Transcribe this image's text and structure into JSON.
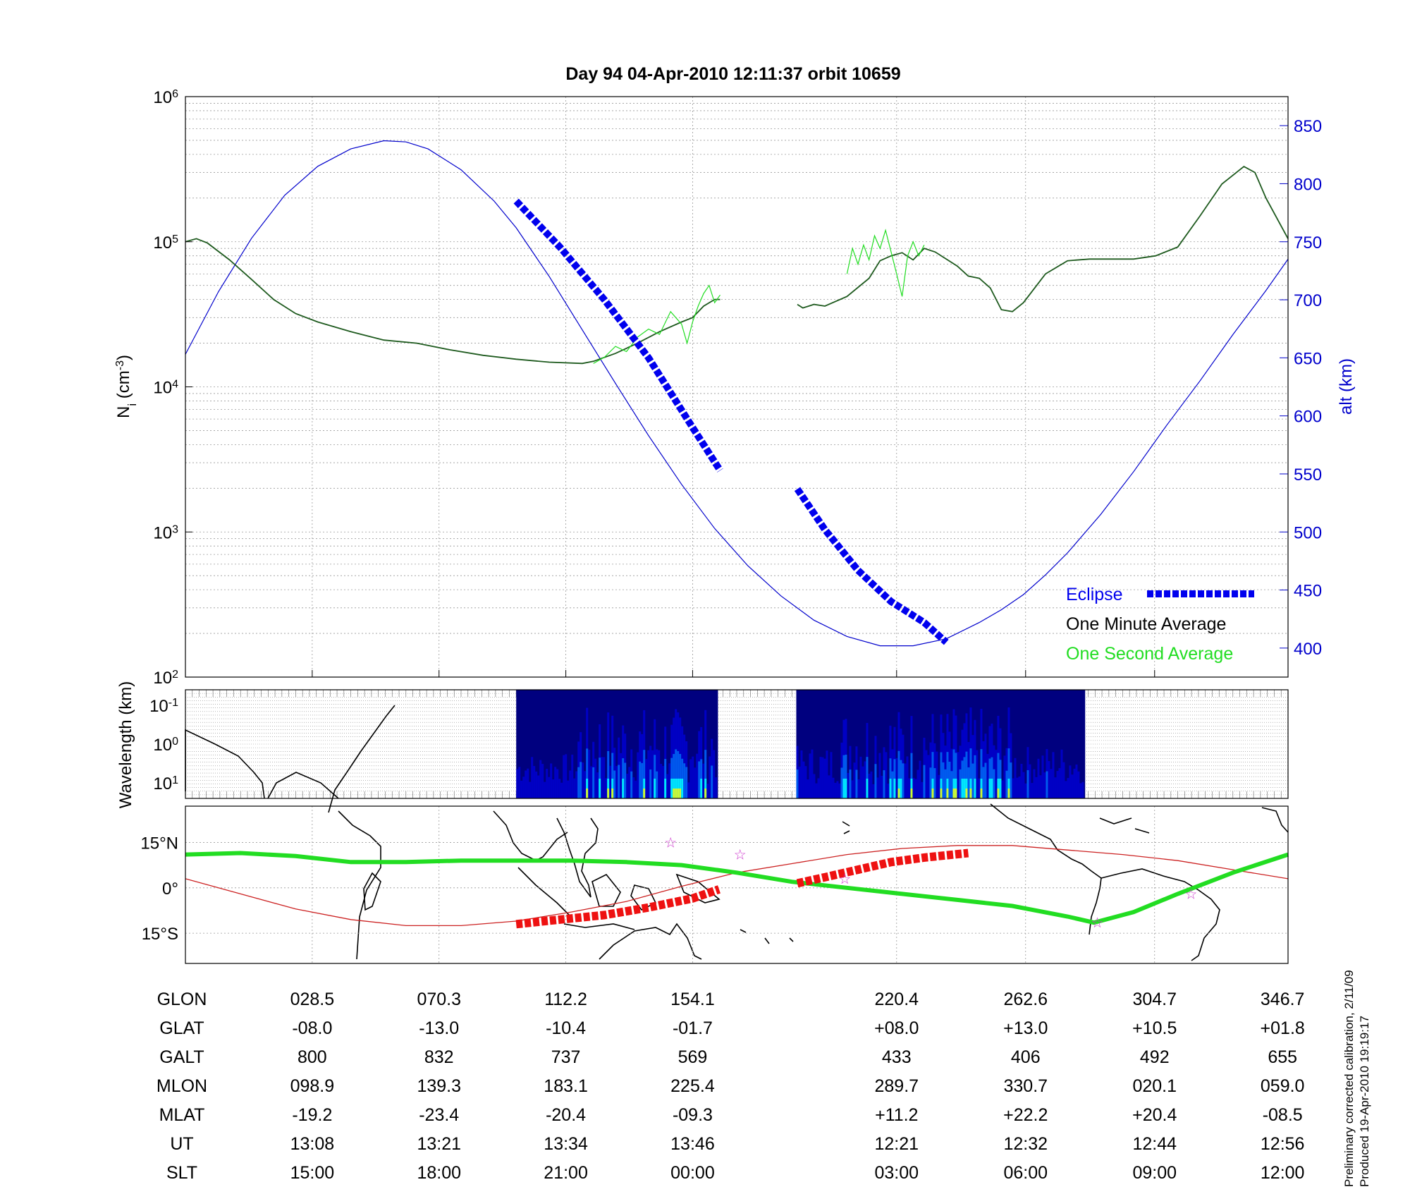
{
  "title": "Day 94  04-Apr-2010 12:11:37   orbit 10659",
  "footnote": {
    "calibration": "Preliminary corrected calibration, 2/11/09",
    "produced": "Produced 19-Apr-2010 19:19:17"
  },
  "colors": {
    "altitude": "#0000cc",
    "one_minute": "#1e5a1e",
    "one_second": "#22dd22",
    "eclipse": "#0000ee",
    "eclipse_map": "#ee1111",
    "track": "#22dd22",
    "orbit_map": "#cc2222",
    "star": "#cc33cc"
  },
  "chart_data": [
    {
      "id": "density",
      "type": "line",
      "ylabel": "N_i (cm^-3)",
      "ylabel_main": "N",
      "ylabel_sub": "i",
      "ylabel_unit_open": " (cm",
      "ylabel_unit_sup": "-3",
      "ylabel_unit_close": ")",
      "yscale": "log",
      "ylim": [
        100,
        1000000
      ],
      "yticks": [
        {
          "base": "10",
          "exp": "2",
          "value": 100
        },
        {
          "base": "10",
          "exp": "3",
          "value": 1000
        },
        {
          "base": "10",
          "exp": "4",
          "value": 10000
        },
        {
          "base": "10",
          "exp": "5",
          "value": 100000
        },
        {
          "base": "10",
          "exp": "6",
          "value": 1000000
        }
      ],
      "y2label": "alt (km)",
      "y2lim": [
        375,
        875
      ],
      "y2ticks": [
        "400",
        "450",
        "500",
        "550",
        "600",
        "650",
        "700",
        "750",
        "800",
        "850"
      ],
      "xlim": [
        0,
        1
      ],
      "xgrid": [
        0.115,
        0.23,
        0.345,
        0.46,
        0.645,
        0.762,
        0.879
      ],
      "grid": true,
      "legend_position": "bottom-right",
      "legend": [
        {
          "label": "Eclipse",
          "color": "#0000ee",
          "style": "dashed-thick"
        },
        {
          "label": "One Minute Average",
          "color": "#000000",
          "style": "none"
        },
        {
          "label": "One Second Average",
          "color": "#22dd22",
          "style": "none"
        }
      ],
      "series": [
        {
          "key": "altitude",
          "axis": "right",
          "x": [
            0,
            0.03,
            0.06,
            0.09,
            0.12,
            0.15,
            0.18,
            0.2,
            0.22,
            0.25,
            0.28,
            0.3,
            0.33,
            0.36,
            0.39,
            0.42,
            0.45,
            0.48,
            0.51,
            0.54,
            0.57,
            0.6,
            0.63,
            0.66,
            0.69,
            0.72,
            0.74,
            0.76,
            0.78,
            0.8,
            0.83,
            0.86,
            0.89,
            0.92,
            0.95,
            0.98,
            1.0
          ],
          "values": [
            653,
            707,
            753,
            790,
            815,
            830,
            837,
            836,
            830,
            812,
            785,
            762,
            720,
            674,
            628,
            583,
            541,
            503,
            471,
            445,
            424,
            410,
            402,
            402,
            408,
            422,
            433,
            446,
            463,
            482,
            515,
            552,
            592,
            630,
            670,
            708,
            735
          ]
        },
        {
          "key": "one_minute",
          "axis": "left",
          "segments": [
            {
              "x": [
                0,
                0.01,
                0.02,
                0.04,
                0.06,
                0.08,
                0.1,
                0.12,
                0.15,
                0.18,
                0.21,
                0.24,
                0.27,
                0.3,
                0.33,
                0.36,
                0.37,
                0.39,
                0.41,
                0.43,
                0.45,
                0.46,
                0.47,
                0.48,
                0.485
              ],
              "values": [
                100000,
                105000,
                98000,
                75000,
                55000,
                40000,
                32000,
                28000,
                24000,
                21000,
                20000,
                18000,
                16500,
                15500,
                14800,
                14500,
                15000,
                17000,
                20000,
                24000,
                28000,
                30000,
                36000,
                40000,
                40000
              ]
            },
            {
              "x": [
                0.555,
                0.56,
                0.57,
                0.58,
                0.6,
                0.62,
                0.63,
                0.64,
                0.65,
                0.66,
                0.67,
                0.68,
                0.7,
                0.71,
                0.72,
                0.73,
                0.74,
                0.75,
                0.76,
                0.78,
                0.8,
                0.82,
                0.84,
                0.86,
                0.88,
                0.9,
                0.92,
                0.94,
                0.96,
                0.97,
                0.98,
                1.0
              ],
              "values": [
                37000,
                35000,
                37000,
                36000,
                42000,
                56000,
                74000,
                80000,
                84000,
                75000,
                90000,
                85000,
                68000,
                58000,
                56000,
                48000,
                34000,
                33000,
                38000,
                60000,
                74000,
                76000,
                76000,
                76000,
                80000,
                92000,
                150000,
                250000,
                330000,
                300000,
                200000,
                105000
              ]
            }
          ]
        },
        {
          "key": "one_second",
          "axis": "left",
          "segments": [
            {
              "x": [
                0.37,
                0.38,
                0.39,
                0.4,
                0.41,
                0.42,
                0.43,
                0.44,
                0.45,
                0.455,
                0.46,
                0.465,
                0.47,
                0.475,
                0.48,
                0.485
              ],
              "values": [
                14500,
                16000,
                19000,
                17500,
                22000,
                25000,
                23000,
                33000,
                27000,
                20000,
                28000,
                36000,
                44000,
                50000,
                38000,
                43000
              ]
            },
            {
              "x": [
                0.6,
                0.605,
                0.61,
                0.615,
                0.62,
                0.625,
                0.63,
                0.635,
                0.64,
                0.645,
                0.65,
                0.655,
                0.66,
                0.665,
                0.67
              ],
              "values": [
                60000,
                90000,
                70000,
                95000,
                75000,
                110000,
                90000,
                120000,
                85000,
                60000,
                42000,
                80000,
                100000,
                80000,
                95000
              ]
            }
          ]
        },
        {
          "key": "eclipse",
          "axis": "right",
          "segments": [
            {
              "x": [
                0.3,
                0.34,
                0.38,
                0.42,
                0.46,
                0.485
              ],
              "values": [
                785,
                745,
                700,
                650,
                590,
                553
              ]
            },
            {
              "x": [
                0.555,
                0.58,
                0.61,
                0.64,
                0.67,
                0.69
              ],
              "values": [
                537,
                502,
                467,
                440,
                422,
                405
              ]
            }
          ]
        }
      ]
    },
    {
      "id": "spectrogram",
      "type": "heatmap",
      "ylabel": "Wavelength (km)",
      "yscale": "log",
      "yticks": [
        {
          "base": "10",
          "exp": "-1"
        },
        {
          "base": "10",
          "exp": "0"
        },
        {
          "base": "10",
          "exp": "1"
        }
      ],
      "blocks": [
        [
          0.3,
          0.483
        ],
        [
          0.554,
          0.816
        ]
      ],
      "colormap": [
        "#00007f",
        "#0000ff",
        "#0080ff",
        "#00ffff",
        "#80ff80",
        "#ffff00"
      ]
    },
    {
      "id": "map",
      "type": "line",
      "yticks": [
        "15°N",
        "0°",
        "15°S"
      ],
      "ytick_values": [
        15,
        0,
        -15
      ],
      "ylim": [
        -25,
        27
      ],
      "xlim": [
        0,
        1
      ],
      "star_symbol": "☆",
      "series": [
        {
          "key": "track",
          "x": [
            0,
            0.05,
            0.1,
            0.15,
            0.2,
            0.25,
            0.3,
            0.35,
            0.4,
            0.45,
            0.5,
            0.55,
            0.6,
            0.65,
            0.7,
            0.75,
            0.8,
            0.824,
            0.86,
            0.9,
            0.95,
            1.0
          ],
          "values": [
            11,
            11.5,
            10.5,
            8.5,
            8.5,
            9,
            9,
            9,
            8.5,
            7.5,
            5,
            2,
            0,
            -2,
            -4,
            -6,
            -9.5,
            -11.5,
            -8,
            -2,
            5,
            11
          ]
        },
        {
          "key": "orbit_map",
          "x": [
            0,
            0.05,
            0.1,
            0.15,
            0.2,
            0.25,
            0.3,
            0.35,
            0.4,
            0.45,
            0.5,
            0.55,
            0.6,
            0.65,
            0.7,
            0.75,
            0.8,
            0.85,
            0.9,
            0.95,
            1.0
          ],
          "values": [
            3,
            -2,
            -7,
            -10.5,
            -12.5,
            -12.5,
            -11,
            -8,
            -4.5,
            0.5,
            5,
            8,
            11,
            13,
            14,
            14,
            12.5,
            11,
            9,
            6,
            3
          ]
        },
        {
          "key": "eclipse_map",
          "segments": [
            {
              "x": [
                0.3,
                0.34,
                0.38,
                0.42,
                0.46,
                0.484
              ],
              "values": [
                -12,
                -10.5,
                -9,
                -6.5,
                -3.5,
                -0.5
              ]
            },
            {
              "x": [
                0.555,
                0.58,
                0.61,
                0.64,
                0.67,
                0.71
              ],
              "values": [
                1.5,
                3.5,
                6,
                8.5,
                10,
                11.5
              ]
            }
          ]
        }
      ],
      "stars": [
        {
          "x": 0.44,
          "y": 15
        },
        {
          "x": 0.503,
          "y": 11
        },
        {
          "x": 0.598,
          "y": 3
        },
        {
          "x": 0.827,
          "y": -11.5
        },
        {
          "x": 0.912,
          "y": -2
        }
      ]
    },
    {
      "id": "table",
      "type": "table",
      "row_labels": [
        "GLON",
        "GLAT",
        "GALT",
        "MLON",
        "MLAT",
        "UT",
        "SLT"
      ],
      "column_x": [
        0.115,
        0.23,
        0.345,
        0.46,
        0.645,
        0.762,
        0.879,
        0.995
      ],
      "columns": [
        [
          "028.5",
          "-08.0",
          "800",
          "098.9",
          "-19.2",
          "13:08",
          "15:00"
        ],
        [
          "070.3",
          "-13.0",
          "832",
          "139.3",
          "-23.4",
          "13:21",
          "18:00"
        ],
        [
          "112.2",
          "-10.4",
          "737",
          "183.1",
          "-20.4",
          "13:34",
          "21:00"
        ],
        [
          "154.1",
          "-01.7",
          "569",
          "225.4",
          "-09.3",
          "13:46",
          "00:00"
        ],
        [
          "220.4",
          "+08.0",
          "433",
          "289.7",
          "+11.2",
          "12:21",
          "03:00"
        ],
        [
          "262.6",
          "+13.0",
          "406",
          "330.7",
          "+22.2",
          "12:32",
          "06:00"
        ],
        [
          "304.7",
          "+10.5",
          "492",
          "020.1",
          "+20.4",
          "12:44",
          "09:00"
        ],
        [
          "346.7",
          "+01.8",
          "655",
          "059.0",
          "-08.5",
          "12:56",
          "12:00"
        ]
      ]
    }
  ]
}
